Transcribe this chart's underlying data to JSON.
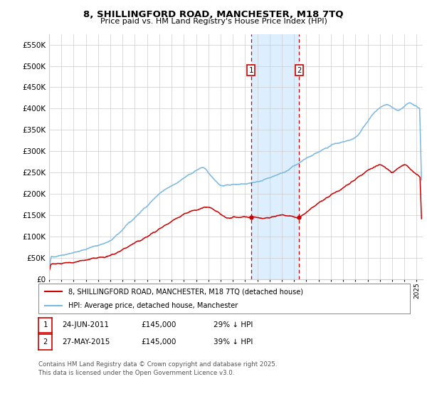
{
  "title": "8, SHILLINGFORD ROAD, MANCHESTER, M18 7TQ",
  "subtitle": "Price paid vs. HM Land Registry's House Price Index (HPI)",
  "ylim": [
    0,
    575000
  ],
  "yticks": [
    0,
    50000,
    100000,
    150000,
    200000,
    250000,
    300000,
    350000,
    400000,
    450000,
    500000,
    550000
  ],
  "xstart": 1995.0,
  "xend": 2025.5,
  "hpi_color": "#7ab8e0",
  "price_color": "#cc0000",
  "sale1_date": 2011.48,
  "sale2_date": 2015.41,
  "sale1_label": "1",
  "sale2_label": "2",
  "annotation_color": "#cc0000",
  "shade_color": "#ddeeff",
  "footnote": "Contains HM Land Registry data © Crown copyright and database right 2025.\nThis data is licensed under the Open Government Licence v3.0.",
  "legend_line1": "8, SHILLINGFORD ROAD, MANCHESTER, M18 7TQ (detached house)",
  "legend_line2": "HPI: Average price, detached house, Manchester",
  "table_row1": [
    "1",
    "24-JUN-2011",
    "£145,000",
    "29% ↓ HPI"
  ],
  "table_row2": [
    "2",
    "27-MAY-2015",
    "£145,000",
    "39% ↓ HPI"
  ],
  "background_color": "#ffffff",
  "grid_color": "#cccccc"
}
